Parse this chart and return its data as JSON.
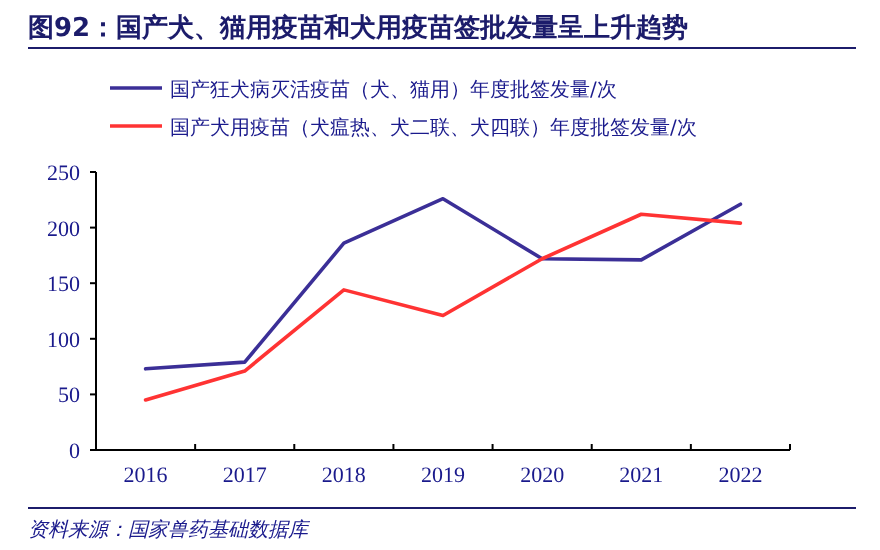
{
  "chart_data": {
    "type": "line",
    "title": "图92：国产犬、猫用疫苗和犬用疫苗签批发量呈上升趋势",
    "categories": [
      "2016",
      "2017",
      "2018",
      "2019",
      "2020",
      "2021",
      "2022"
    ],
    "series": [
      {
        "name": "国产狂犬病灭活疫苗（犬、猫用）年度批签发量/次",
        "color": "#3b2f97",
        "values": [
          73,
          79,
          186,
          226,
          172,
          171,
          221
        ]
      },
      {
        "name": "国产犬用疫苗（犬瘟热、犬二联、犬四联）年度批签发量/次",
        "color": "#ff3333",
        "values": [
          45,
          71,
          144,
          121,
          172,
          212,
          204
        ]
      }
    ],
    "ylim": [
      0,
      250
    ],
    "yticks": [
      0,
      50,
      100,
      150,
      200,
      250
    ],
    "legend": "top left",
    "annotations": [
      "资料来源：国家兽药基础数据库"
    ]
  }
}
